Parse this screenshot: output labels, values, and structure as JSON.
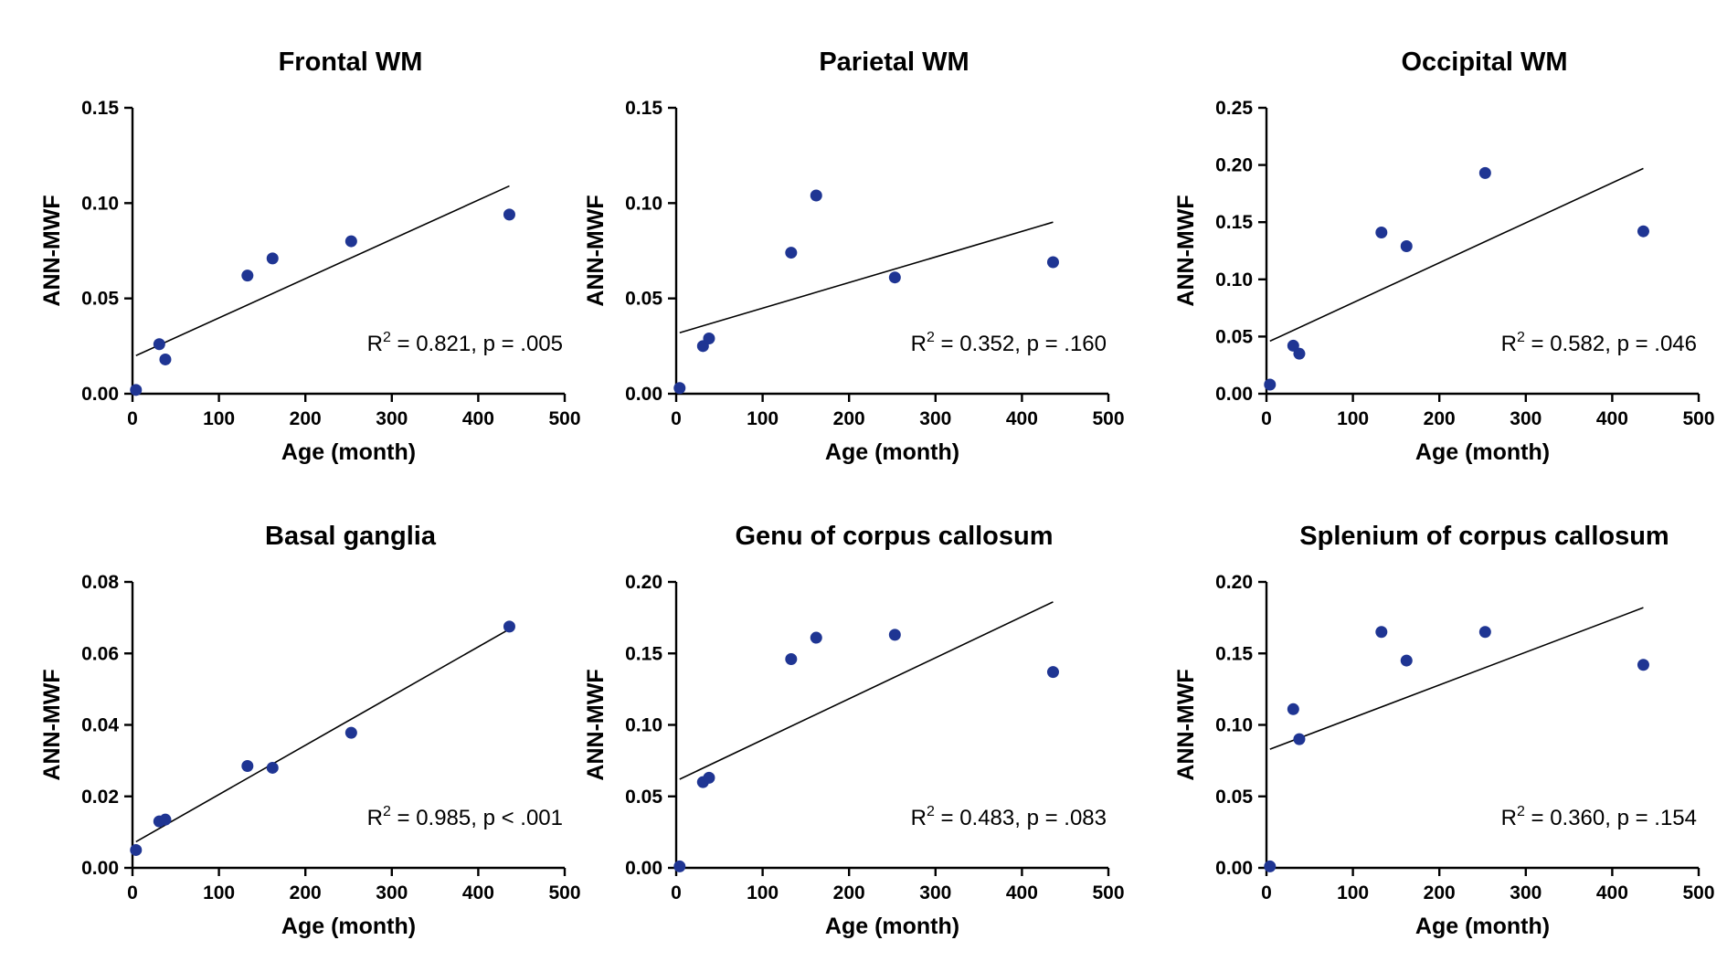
{
  "chart_data": [
    {
      "type": "scatter",
      "title": "Frontal WM",
      "xlabel": "Age (month)",
      "ylabel": "ANN-MWF",
      "xlim": [
        0,
        500
      ],
      "ylim": [
        0,
        0.15
      ],
      "xticks": [
        "0",
        "100",
        "200",
        "300",
        "400",
        "500"
      ],
      "yticks": [
        "0.00",
        "0.05",
        "0.10",
        "0.15"
      ],
      "points": [
        [
          4,
          0.002
        ],
        [
          31,
          0.026
        ],
        [
          38,
          0.018
        ],
        [
          133,
          0.062
        ],
        [
          162,
          0.071
        ],
        [
          253,
          0.08
        ],
        [
          436,
          0.094
        ]
      ],
      "fit": [
        [
          4,
          0.02
        ],
        [
          436,
          0.109
        ]
      ],
      "annotation": {
        "prefix": "R",
        "sup": "2",
        "suffix": " = 0.821, p = .005"
      },
      "grid": false
    },
    {
      "type": "scatter",
      "title": "Parietal WM",
      "xlabel": "Age (month)",
      "ylabel": "ANN-MWF",
      "xlim": [
        0,
        500
      ],
      "ylim": [
        0,
        0.15
      ],
      "xticks": [
        "0",
        "100",
        "200",
        "300",
        "400",
        "500"
      ],
      "yticks": [
        "0.00",
        "0.05",
        "0.10",
        "0.15"
      ],
      "points": [
        [
          4,
          0.003
        ],
        [
          31,
          0.025
        ],
        [
          38,
          0.029
        ],
        [
          133,
          0.074
        ],
        [
          162,
          0.104
        ],
        [
          253,
          0.061
        ],
        [
          436,
          0.069
        ]
      ],
      "fit": [
        [
          4,
          0.032
        ],
        [
          436,
          0.09
        ]
      ],
      "annotation": {
        "prefix": "R",
        "sup": "2",
        "suffix": " = 0.352, p = .160"
      },
      "grid": false
    },
    {
      "type": "scatter",
      "title": "Occipital WM",
      "xlabel": "Age (month)",
      "ylabel": "ANN-MWF",
      "xlim": [
        0,
        500
      ],
      "ylim": [
        0,
        0.25
      ],
      "xticks": [
        "0",
        "100",
        "200",
        "300",
        "400",
        "500"
      ],
      "yticks": [
        "0.00",
        "0.05",
        "0.10",
        "0.15",
        "0.20",
        "0.25"
      ],
      "points": [
        [
          4,
          0.008
        ],
        [
          31,
          0.042
        ],
        [
          38,
          0.035
        ],
        [
          133,
          0.141
        ],
        [
          162,
          0.129
        ],
        [
          253,
          0.193
        ],
        [
          436,
          0.142
        ]
      ],
      "fit": [
        [
          4,
          0.046
        ],
        [
          436,
          0.197
        ]
      ],
      "annotation": {
        "prefix": "R",
        "sup": "2",
        "suffix": " = 0.582, p = .046"
      },
      "grid": false
    },
    {
      "type": "scatter",
      "title": "Basal ganglia",
      "xlabel": "Age (month)",
      "ylabel": "ANN-MWF",
      "xlim": [
        0,
        500
      ],
      "ylim": [
        0,
        0.08
      ],
      "xticks": [
        "0",
        "100",
        "200",
        "300",
        "400",
        "500"
      ],
      "yticks": [
        "0.00",
        "0.02",
        "0.04",
        "0.06",
        "0.08"
      ],
      "points": [
        [
          4,
          0.005
        ],
        [
          31,
          0.013
        ],
        [
          38,
          0.0135
        ],
        [
          133,
          0.0285
        ],
        [
          162,
          0.028
        ],
        [
          253,
          0.0378
        ],
        [
          436,
          0.0675
        ]
      ],
      "fit": [
        [
          4,
          0.0073
        ],
        [
          436,
          0.0668
        ]
      ],
      "annotation": {
        "prefix": "R",
        "sup": "2",
        "suffix": " = 0.985, p < .001"
      },
      "grid": false
    },
    {
      "type": "scatter",
      "title": "Genu of corpus callosum",
      "xlabel": "Age (month)",
      "ylabel": "ANN-MWF",
      "xlim": [
        0,
        500
      ],
      "ylim": [
        0,
        0.2
      ],
      "xticks": [
        "0",
        "100",
        "200",
        "300",
        "400",
        "500"
      ],
      "yticks": [
        "0.00",
        "0.05",
        "0.10",
        "0.15",
        "0.20"
      ],
      "points": [
        [
          4,
          0.001
        ],
        [
          31,
          0.06
        ],
        [
          38,
          0.063
        ],
        [
          133,
          0.146
        ],
        [
          162,
          0.161
        ],
        [
          253,
          0.163
        ],
        [
          436,
          0.137
        ]
      ],
      "fit": [
        [
          4,
          0.062
        ],
        [
          436,
          0.186
        ]
      ],
      "annotation": {
        "prefix": "R",
        "sup": "2",
        "suffix": " = 0.483, p = .083"
      },
      "grid": false
    },
    {
      "type": "scatter",
      "title": "Splenium of corpus callosum",
      "xlabel": "Age (month)",
      "ylabel": "ANN-MWF",
      "xlim": [
        0,
        500
      ],
      "ylim": [
        0,
        0.2
      ],
      "xticks": [
        "0",
        "100",
        "200",
        "300",
        "400",
        "500"
      ],
      "yticks": [
        "0.00",
        "0.05",
        "0.10",
        "0.15",
        "0.20"
      ],
      "points": [
        [
          4,
          0.001
        ],
        [
          31,
          0.111
        ],
        [
          38,
          0.09
        ],
        [
          133,
          0.165
        ],
        [
          162,
          0.145
        ],
        [
          253,
          0.165
        ],
        [
          436,
          0.142
        ]
      ],
      "fit": [
        [
          4,
          0.083
        ],
        [
          436,
          0.182
        ]
      ],
      "annotation": {
        "prefix": "R",
        "sup": "2",
        "suffix": " = 0.360, p = .154"
      },
      "grid": false
    }
  ],
  "colors": {
    "point": "#1f3593",
    "axis": "#000000",
    "fit_line": "#000000"
  }
}
